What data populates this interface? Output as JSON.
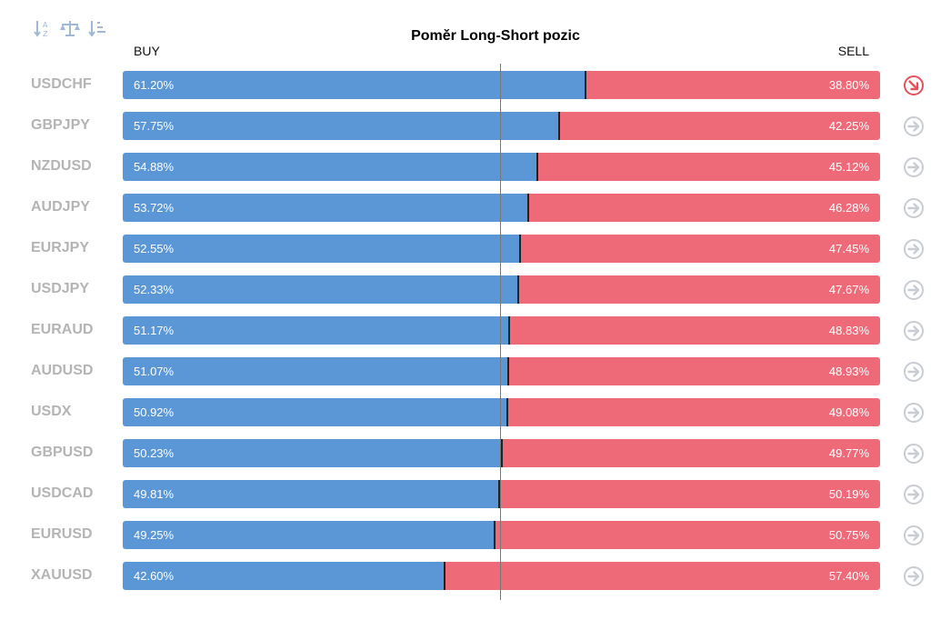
{
  "toolbar": {
    "icons": [
      "sort-alphabetical-icon",
      "balance-icon",
      "sort-descending-icon"
    ]
  },
  "title": "Poměr Long-Short pozic",
  "buy_label": "BUY",
  "sell_label": "SELL",
  "colors": {
    "buy": "#5b97d6",
    "sell": "#ef6a78",
    "label": "#b4b4b4",
    "arrow_neutral": "#c8ccd3",
    "arrow_highlight": "#e8505b"
  },
  "chart_data": {
    "type": "bar",
    "stacked": true,
    "orientation": "horizontal",
    "categories": [
      "USDCHF",
      "GBPJPY",
      "NZDUSD",
      "AUDJPY",
      "EURJPY",
      "USDJPY",
      "EURAUD",
      "AUDUSD",
      "USDX",
      "GBPUSD",
      "USDCAD",
      "EURUSD",
      "XAUUSD"
    ],
    "series": [
      {
        "name": "BUY",
        "values": [
          61.2,
          57.75,
          54.88,
          53.72,
          52.55,
          52.33,
          51.17,
          51.07,
          50.92,
          50.23,
          49.81,
          49.25,
          42.6
        ]
      },
      {
        "name": "SELL",
        "values": [
          38.8,
          42.25,
          45.12,
          46.28,
          47.45,
          47.67,
          48.83,
          48.93,
          49.08,
          49.77,
          50.19,
          50.75,
          57.4
        ]
      }
    ],
    "labels_buy": [
      "61.20%",
      "57.75%",
      "54.88%",
      "53.72%",
      "52.55%",
      "52.33%",
      "51.17%",
      "51.07%",
      "50.92%",
      "50.23%",
      "49.81%",
      "49.25%",
      "42.60%"
    ],
    "labels_sell": [
      "38.80%",
      "42.25%",
      "45.12%",
      "46.28%",
      "47.45%",
      "47.67%",
      "48.83%",
      "48.93%",
      "49.08%",
      "49.77%",
      "50.19%",
      "50.75%",
      "57.40%"
    ],
    "arrows": [
      "down-right",
      "right",
      "right",
      "right",
      "right",
      "right",
      "right",
      "right",
      "right",
      "right",
      "right",
      "right",
      "right"
    ],
    "xlim": [
      0,
      100
    ]
  }
}
